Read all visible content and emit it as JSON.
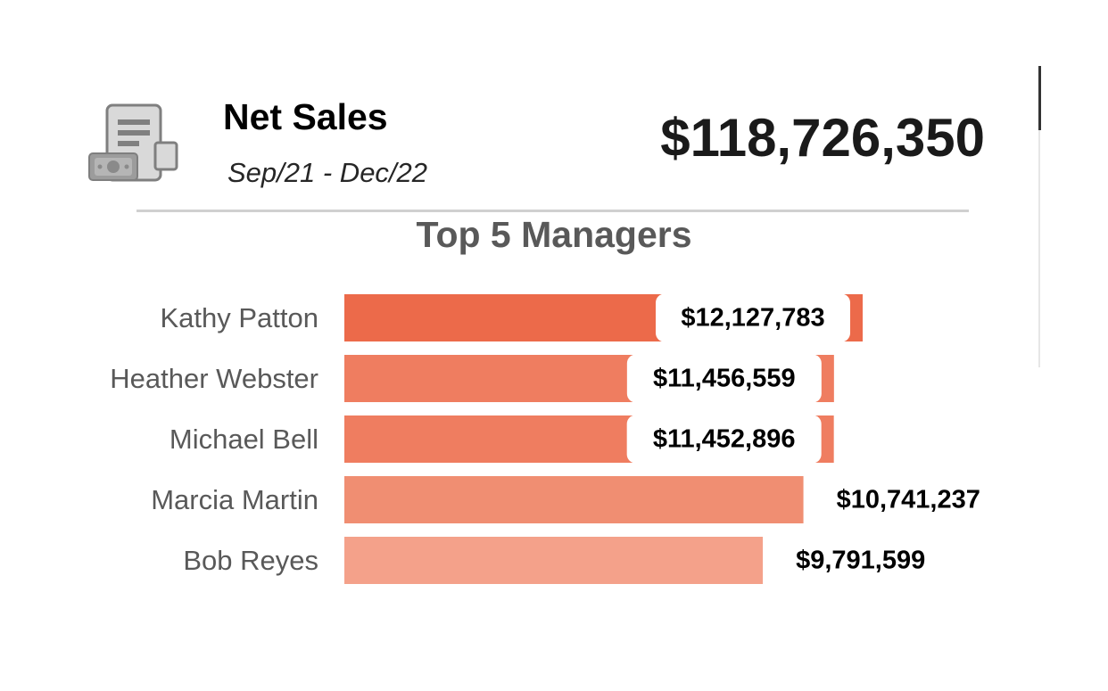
{
  "kpi": {
    "title": "Net Sales",
    "period": "Sep/21 - Dec/22",
    "value": "$118,726,350",
    "icon": "receipt-money-icon"
  },
  "chart_data": {
    "type": "bar",
    "orientation": "horizontal",
    "title": "Top 5 Managers",
    "categories": [
      "Kathy Patton",
      "Heather Webster",
      "Michael Bell",
      "Marcia Martin",
      "Bob Reyes"
    ],
    "values": [
      12127783,
      11456559,
      11452896,
      10741237,
      9791599
    ],
    "data_labels": [
      "$12,127,783",
      "$11,456,559",
      "$11,452,896",
      "$10,741,237",
      "$9,791,599"
    ],
    "xlim": [
      0,
      12127783
    ],
    "colors": [
      "#EC6A4A",
      "#EF7D60",
      "#EF7D60",
      "#F08E72",
      "#F4A18A"
    ],
    "grid": false,
    "legend": "none"
  }
}
